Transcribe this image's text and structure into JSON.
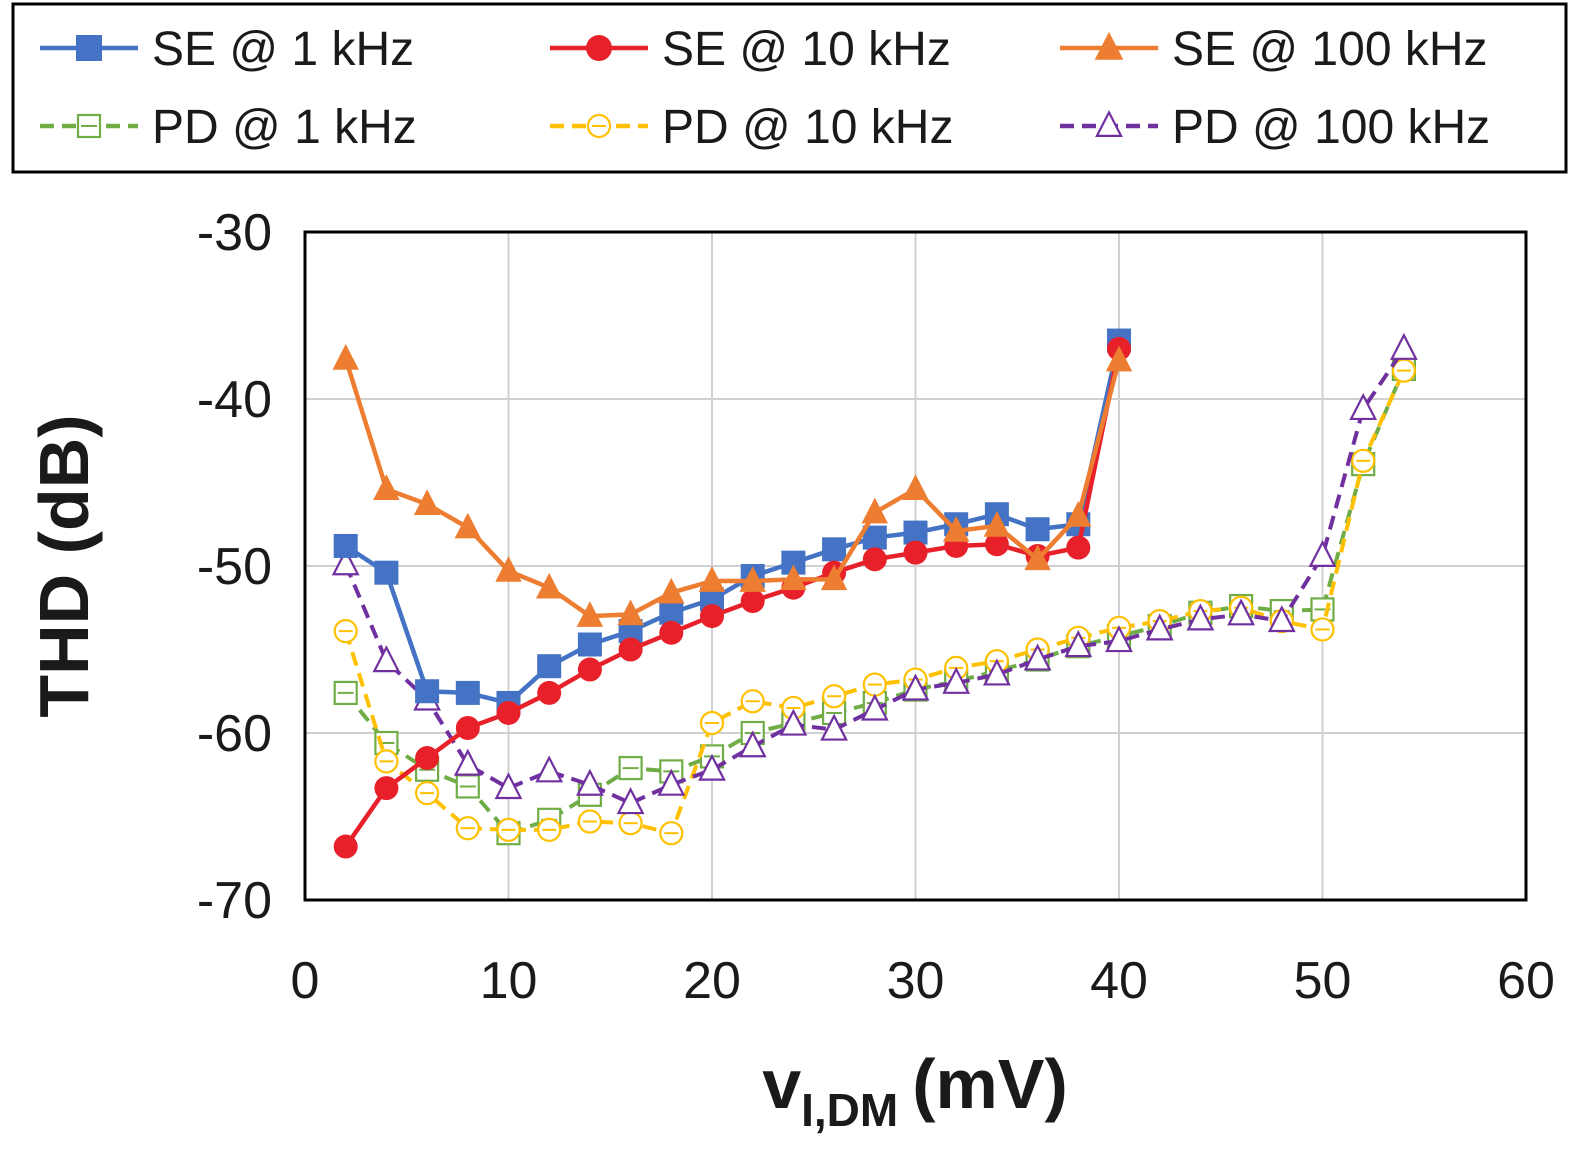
{
  "chart_data": {
    "type": "line",
    "title": "",
    "xlabel": {
      "main": "v",
      "sub": "I,DM",
      "unit": "(mV)"
    },
    "ylabel": "THD (dB)",
    "xlim": [
      0,
      60
    ],
    "ylim": [
      -70,
      -30
    ],
    "x_ticks": [
      0,
      10,
      20,
      30,
      40,
      50,
      60
    ],
    "y_ticks": [
      -30,
      -40,
      -50,
      -60,
      -70
    ],
    "x_tick_labels": [
      "0",
      "10",
      "20",
      "30",
      "40",
      "50",
      "60"
    ],
    "y_tick_labels": [
      "-30",
      "-40",
      "-50",
      "-60",
      "-70"
    ],
    "grid": true,
    "legend_position": "top",
    "series": [
      {
        "name": "SE @ 1 kHz",
        "color": "#4472C4",
        "marker": "square",
        "filled": true,
        "dashed": false,
        "x": [
          2,
          4,
          6,
          8,
          10,
          12,
          14,
          16,
          18,
          20,
          22,
          24,
          26,
          28,
          30,
          32,
          34,
          36,
          38,
          40
        ],
        "y": [
          -48.8,
          -50.4,
          -57.5,
          -57.6,
          -58.2,
          -56.0,
          -54.7,
          -53.9,
          -52.8,
          -52.0,
          -50.6,
          -49.8,
          -49.0,
          -48.3,
          -48.0,
          -47.5,
          -46.9,
          -47.8,
          -47.5,
          -36.5
        ]
      },
      {
        "name": "SE @ 10 kHz",
        "color": "#E8202A",
        "marker": "circle",
        "filled": true,
        "dashed": false,
        "x": [
          2,
          4,
          6,
          8,
          10,
          12,
          14,
          16,
          18,
          20,
          22,
          24,
          26,
          28,
          30,
          32,
          34,
          36,
          38,
          40
        ],
        "y": [
          -66.8,
          -63.3,
          -61.5,
          -59.7,
          -58.8,
          -57.6,
          -56.2,
          -55.0,
          -54.0,
          -53.0,
          -52.1,
          -51.3,
          -50.4,
          -49.6,
          -49.2,
          -48.8,
          -48.7,
          -49.4,
          -48.9,
          -37.0
        ]
      },
      {
        "name": "SE @ 100 kHz",
        "color": "#ED7D31",
        "marker": "triangle",
        "filled": true,
        "dashed": false,
        "x": [
          2,
          4,
          6,
          8,
          10,
          12,
          14,
          16,
          18,
          20,
          22,
          24,
          26,
          28,
          30,
          32,
          34,
          36,
          38,
          40
        ],
        "y": [
          -37.6,
          -45.4,
          -46.3,
          -47.7,
          -50.3,
          -51.3,
          -53.0,
          -52.9,
          -51.6,
          -50.9,
          -50.9,
          -50.8,
          -50.8,
          -46.8,
          -45.4,
          -47.9,
          -47.6,
          -49.6,
          -47.0,
          -37.7
        ]
      },
      {
        "name": "PD @ 1 kHz",
        "color": "#70AD47",
        "marker": "square",
        "filled": false,
        "dashed": true,
        "x": [
          2,
          4,
          6,
          8,
          10,
          12,
          14,
          16,
          18,
          20,
          22,
          24,
          26,
          28,
          30,
          32,
          34,
          36,
          38,
          40,
          42,
          44,
          46,
          48,
          50,
          52,
          54
        ],
        "y": [
          -57.6,
          -60.6,
          -62.2,
          -63.2,
          -66.0,
          -65.2,
          -63.7,
          -62.1,
          -62.3,
          -61.4,
          -60.0,
          -59.4,
          -58.8,
          -58.2,
          -57.4,
          -56.9,
          -56.3,
          -55.6,
          -54.8,
          -54.2,
          -53.6,
          -52.8,
          -52.4,
          -52.7,
          -52.6,
          -43.9,
          -38.2
        ]
      },
      {
        "name": "PD @ 10 kHz",
        "color": "#FFC000",
        "marker": "circle",
        "filled": false,
        "dashed": true,
        "x": [
          2,
          4,
          6,
          8,
          10,
          12,
          14,
          16,
          18,
          20,
          22,
          24,
          26,
          28,
          30,
          32,
          34,
          36,
          38,
          40,
          42,
          44,
          46,
          48,
          50,
          52,
          54
        ],
        "y": [
          -53.9,
          -61.7,
          -63.6,
          -65.7,
          -65.8,
          -65.8,
          -65.3,
          -65.4,
          -66.0,
          -59.4,
          -58.1,
          -58.5,
          -57.8,
          -57.1,
          -56.8,
          -56.1,
          -55.7,
          -55.0,
          -54.3,
          -53.7,
          -53.3,
          -52.7,
          -52.5,
          -53.3,
          -53.8,
          -43.7,
          -38.3
        ]
      },
      {
        "name": "PD @ 100 kHz",
        "color": "#7030A0",
        "marker": "triangle",
        "filled": false,
        "dashed": true,
        "x": [
          2,
          4,
          6,
          8,
          10,
          12,
          14,
          16,
          18,
          20,
          22,
          24,
          26,
          28,
          30,
          32,
          34,
          36,
          38,
          40,
          42,
          44,
          46,
          48,
          50,
          52,
          54
        ],
        "y": [
          -49.9,
          -55.7,
          -58.0,
          -61.9,
          -63.3,
          -62.3,
          -63.1,
          -64.2,
          -63.1,
          -62.2,
          -60.8,
          -59.5,
          -59.8,
          -58.6,
          -57.4,
          -57.0,
          -56.5,
          -55.6,
          -54.8,
          -54.5,
          -53.8,
          -53.2,
          -52.9,
          -53.3,
          -49.4,
          -40.6,
          -37.0
        ]
      }
    ]
  }
}
